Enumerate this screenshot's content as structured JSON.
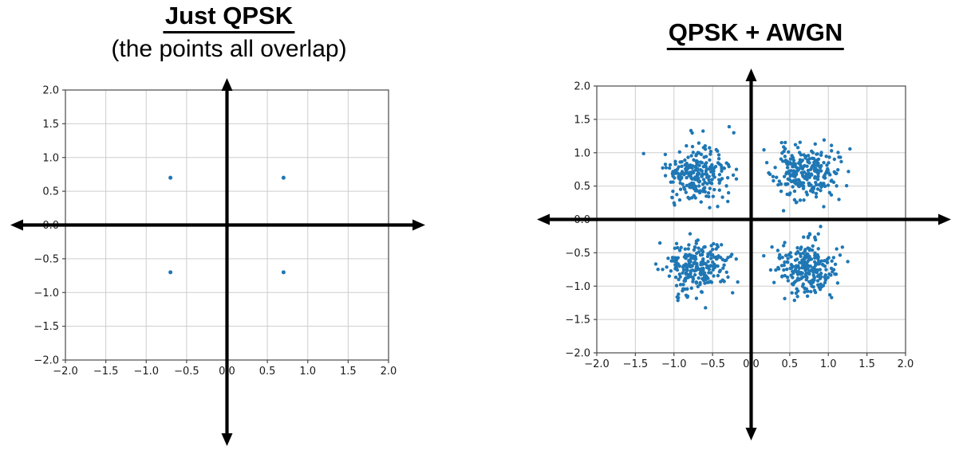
{
  "colors": {
    "marker": "#1f77b4",
    "grid": "#cdcdcd",
    "spine": "#4a4a4a",
    "tick_label": "#1a1a1a",
    "axis_arrow": "#000000",
    "background": "#ffffff",
    "title_text": "#000000"
  },
  "chart_data": [
    {
      "type": "scatter",
      "title": "Just QPSK",
      "subtitle": "(the points all overlap)",
      "points": [
        [
          -0.7,
          0.7
        ],
        [
          0.7,
          0.7
        ],
        [
          -0.7,
          -0.7
        ],
        [
          0.7,
          -0.7
        ]
      ],
      "xlim": [
        -2.0,
        2.0
      ],
      "ylim": [
        -2.0,
        2.0
      ],
      "xticks": [
        -2.0,
        -1.5,
        -1.0,
        -0.5,
        0.0,
        0.5,
        1.0,
        1.5,
        2.0
      ],
      "yticks": [
        -2.0,
        -1.5,
        -1.0,
        -0.5,
        0.0,
        0.5,
        1.0,
        1.5,
        2.0
      ],
      "xtick_labels": [
        "−2.0",
        "−1.5",
        "−1.0",
        "−0.5",
        "0.0",
        "0.5",
        "1.0",
        "1.5",
        "2.0"
      ],
      "ytick_labels": [
        "−2.0",
        "−1.5",
        "−1.0",
        "−0.5",
        "0.0",
        "0.5",
        "1.0",
        "1.5",
        "2.0"
      ],
      "grid": true,
      "legend": false,
      "origin_axes_arrows": true,
      "marker_color": "#1f77b4"
    },
    {
      "type": "scatter",
      "title": "QPSK + AWGN",
      "subtitle": "",
      "clusters": [
        {
          "center": [
            0.7,
            0.7
          ],
          "std": 0.2,
          "count": 250
        },
        {
          "center": [
            -0.7,
            0.7
          ],
          "std": 0.2,
          "count": 250
        },
        {
          "center": [
            -0.7,
            -0.7
          ],
          "std": 0.2,
          "count": 250
        },
        {
          "center": [
            0.7,
            -0.7
          ],
          "std": 0.2,
          "count": 250
        }
      ],
      "seed": 11,
      "xlim": [
        -2.0,
        2.0
      ],
      "ylim": [
        -2.0,
        2.0
      ],
      "xticks": [
        -2.0,
        -1.5,
        -1.0,
        -0.5,
        0.0,
        0.5,
        1.0,
        1.5,
        2.0
      ],
      "yticks": [
        -2.0,
        -1.5,
        -1.0,
        -0.5,
        0.0,
        0.5,
        1.0,
        1.5,
        2.0
      ],
      "xtick_labels": [
        "−2.0",
        "−1.5",
        "−1.0",
        "−0.5",
        "0.0",
        "0.5",
        "1.0",
        "1.5",
        "2.0"
      ],
      "ytick_labels": [
        "−2.0",
        "−1.5",
        "−1.0",
        "−0.5",
        "0.0",
        "0.5",
        "1.0",
        "1.5",
        "2.0"
      ],
      "grid": true,
      "legend": false,
      "origin_axes_arrows": true,
      "marker_color": "#1f77b4"
    }
  ]
}
